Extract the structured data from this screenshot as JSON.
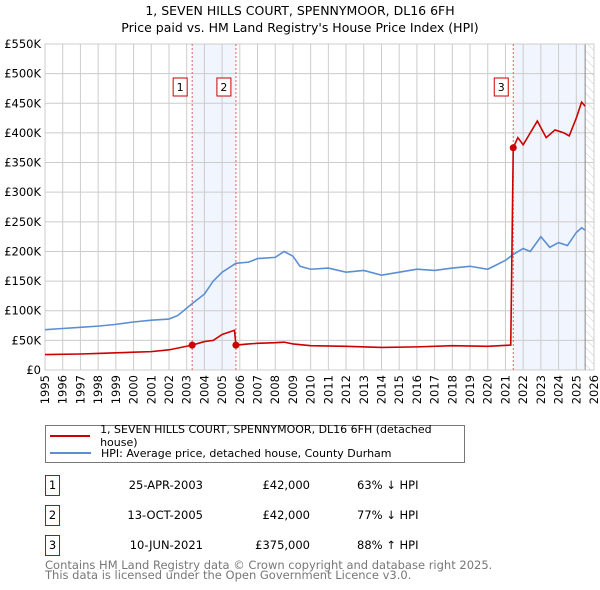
{
  "chart_data": {
    "type": "line",
    "title": "1, SEVEN HILLS COURT, SPENNYMOOR, DL16 6FH",
    "subtitle": "Price paid vs. HM Land Registry's House Price Index (HPI)",
    "xlim": [
      1995,
      2026
    ],
    "ylim": [
      0,
      550000
    ],
    "x_ticks": [
      "1995",
      "1996",
      "1997",
      "1998",
      "1999",
      "2000",
      "2001",
      "2002",
      "2003",
      "2004",
      "2005",
      "2006",
      "2007",
      "2008",
      "2009",
      "2010",
      "2011",
      "2012",
      "2013",
      "2014",
      "2015",
      "2016",
      "2017",
      "2018",
      "2019",
      "2020",
      "2021",
      "2022",
      "2023",
      "2024",
      "2025",
      "2026"
    ],
    "y_ticks": [
      {
        "v": 0,
        "label": "£0"
      },
      {
        "v": 50000,
        "label": "£50K"
      },
      {
        "v": 100000,
        "label": "£100K"
      },
      {
        "v": 150000,
        "label": "£150K"
      },
      {
        "v": 200000,
        "label": "£200K"
      },
      {
        "v": 250000,
        "label": "£250K"
      },
      {
        "v": 300000,
        "label": "£300K"
      },
      {
        "v": 350000,
        "label": "£350K"
      },
      {
        "v": 400000,
        "label": "£400K"
      },
      {
        "v": 450000,
        "label": "£450K"
      },
      {
        "v": 500000,
        "label": "£500K"
      },
      {
        "v": 550000,
        "label": "£550K"
      }
    ],
    "grid": true,
    "series": [
      {
        "name": "1, SEVEN HILLS COURT, SPENNYMOOR, DL16 6FH (detached house)",
        "color": "#cc0000",
        "x": [
          1995,
          1997,
          1998,
          1999,
          2000,
          2001,
          2002,
          2003.31,
          2004,
          2004.5,
          2005,
          2005.7,
          2005.78,
          2006.5,
          2007,
          2008,
          2008.5,
          2009,
          2010,
          2012,
          2014,
          2016,
          2018,
          2020,
          2021.3,
          2021.44,
          2021.7,
          2022,
          2022.3,
          2022.8,
          2023.3,
          2023.8,
          2024.3,
          2024.6,
          2025,
          2025.3,
          2025.5
        ],
        "y": [
          26000,
          27000,
          28000,
          29000,
          30000,
          31000,
          34000,
          42000,
          48000,
          50000,
          60000,
          67000,
          42000,
          44000,
          45000,
          46000,
          47000,
          44000,
          41000,
          40000,
          38000,
          39000,
          41000,
          40000,
          42000,
          375000,
          392000,
          380000,
          395000,
          420000,
          392000,
          405000,
          400000,
          395000,
          425000,
          452000,
          445000
        ]
      },
      {
        "name": "HPI: Average price, detached house, County Durham",
        "color": "#5b8fd4",
        "x": [
          1995,
          1996,
          1997,
          1998,
          1999,
          2000,
          2001,
          2002,
          2002.5,
          2003.31,
          2004,
          2004.5,
          2005,
          2005.78,
          2006.5,
          2007,
          2008,
          2008.5,
          2009,
          2009.4,
          2010,
          2011,
          2012,
          2013,
          2014,
          2015,
          2016,
          2017,
          2018,
          2019,
          2020,
          2021,
          2021.44,
          2022,
          2022.4,
          2023,
          2023.5,
          2024,
          2024.5,
          2025,
          2025.3,
          2025.5
        ],
        "y": [
          68000,
          70000,
          72000,
          74000,
          77000,
          81000,
          84000,
          86000,
          92000,
          112000,
          128000,
          150000,
          165000,
          180000,
          182000,
          188000,
          190000,
          200000,
          192000,
          175000,
          170000,
          172000,
          165000,
          168000,
          160000,
          165000,
          170000,
          168000,
          172000,
          175000,
          170000,
          185000,
          195000,
          205000,
          200000,
          225000,
          207000,
          215000,
          210000,
          232000,
          240000,
          236000
        ]
      }
    ],
    "sales": [
      {
        "label": "1",
        "x": 2003.31,
        "price": 42000,
        "date": "25-APR-2003",
        "price_text": "£42,000",
        "hpi_text": "63% ↓ HPI"
      },
      {
        "label": "2",
        "x": 2005.78,
        "price": 42000,
        "date": "13-OCT-2005",
        "price_text": "£42,000",
        "hpi_text": "77% ↓ HPI"
      },
      {
        "label": "3",
        "x": 2021.44,
        "price": 375000,
        "date": "10-JUN-2021",
        "price_text": "£375,000",
        "hpi_text": "88% ↑ HPI"
      }
    ],
    "shaded_ranges": [
      [
        2003.31,
        2005.78
      ],
      [
        2021.44,
        2025.5
      ]
    ],
    "forecast_start": 2025.5
  },
  "legend": {
    "red": "1, SEVEN HILLS COURT, SPENNYMOOR, DL16 6FH (detached house)",
    "blue": "HPI: Average price, detached house, County Durham"
  },
  "footer": {
    "line1": "Contains HM Land Registry data © Crown copyright and database right 2025.",
    "line2": "This data is licensed under the Open Government Licence v3.0."
  }
}
